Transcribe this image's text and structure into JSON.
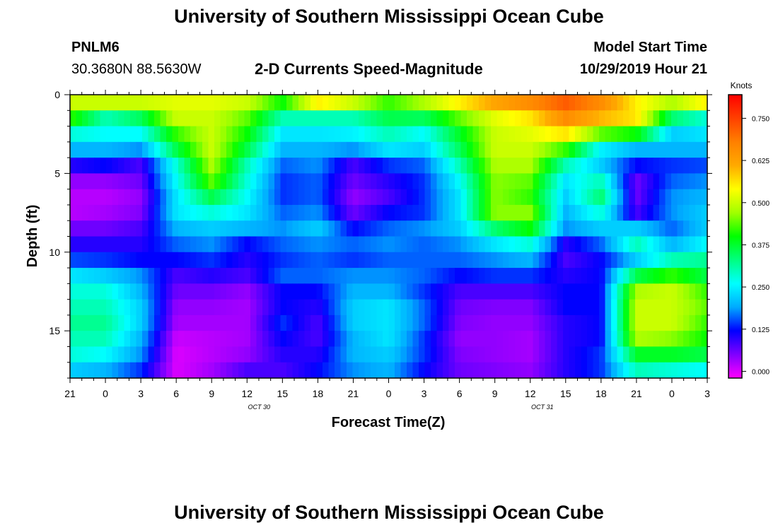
{
  "header": {
    "title_top": "University of Southern Mississippi Ocean Cube",
    "title_bottom": "University of Southern Mississippi Ocean Cube",
    "station_id": "PNLM6",
    "station_coords": "30.3680N 88.5630W",
    "plot_title": "2-D Currents Speed-Magnitude",
    "model_start_label": "Model Start Time",
    "model_start_value": "10/29/2019 Hour 21"
  },
  "chart_data": {
    "type": "heatmap",
    "title": "2-D Currents Speed-Magnitude",
    "xlabel": "Forecast Time(Z)",
    "ylabel": "Depth (ft)",
    "x_tick_labels": [
      "21",
      "0",
      "3",
      "6",
      "9",
      "12",
      "15",
      "18",
      "21",
      "0",
      "3",
      "6",
      "9",
      "12",
      "15",
      "18",
      "21",
      "0",
      "3"
    ],
    "x_day_labels": [
      {
        "after_tick": 5,
        "text": "OCT 30"
      },
      {
        "after_tick": 13,
        "text": "OCT 31"
      }
    ],
    "y_tick_labels": [
      "0",
      "5",
      "10",
      "15"
    ],
    "y_ticks": [
      0,
      5,
      10,
      15
    ],
    "ylim": [
      0,
      18
    ],
    "y_inverted": true,
    "x_hours": 54,
    "colorbar": {
      "label": "Knots",
      "ticks": [
        "0.000",
        "0.125",
        "0.250",
        "0.375",
        "0.500",
        "0.625",
        "0.750"
      ],
      "tick_values": [
        0,
        0.125,
        0.25,
        0.375,
        0.5,
        0.625,
        0.75
      ],
      "range": [
        -0.02,
        0.82
      ],
      "colors": [
        "#ff00ff",
        "#8000ff",
        "#0000ff",
        "#00aaff",
        "#00ffff",
        "#00ff80",
        "#00ff00",
        "#a0ff00",
        "#ffff00",
        "#ffaa00",
        "#ff8000",
        "#ff4000",
        "#ff0000"
      ]
    },
    "row_depths_ft": [
      0.5,
      1.5,
      2.5,
      3.5,
      4.5,
      5.5,
      6.5,
      7.5,
      8.5,
      9.5,
      10.5,
      11.5,
      12.5,
      13.5,
      14.5,
      15.5,
      16.5,
      17.5
    ],
    "col_hours": [
      0,
      3,
      6,
      9,
      12,
      15,
      18,
      21,
      24,
      27,
      30,
      33,
      36,
      39,
      42,
      45,
      48,
      51,
      54
    ],
    "values": [
      [
        0.5,
        0.5,
        0.5,
        0.52,
        0.52,
        0.5,
        0.4,
        0.55,
        0.5,
        0.42,
        0.48,
        0.55,
        0.62,
        0.66,
        0.72,
        0.66,
        0.55,
        0.48,
        0.55
      ],
      [
        0.42,
        0.3,
        0.35,
        0.5,
        0.5,
        0.44,
        0.3,
        0.3,
        0.3,
        0.36,
        0.35,
        0.44,
        0.52,
        0.56,
        0.66,
        0.6,
        0.56,
        0.34,
        0.28
      ],
      [
        0.28,
        0.26,
        0.26,
        0.42,
        0.5,
        0.4,
        0.24,
        0.24,
        0.25,
        0.3,
        0.26,
        0.38,
        0.5,
        0.52,
        0.56,
        0.44,
        0.4,
        0.22,
        0.24
      ],
      [
        0.2,
        0.2,
        0.18,
        0.36,
        0.5,
        0.36,
        0.2,
        0.2,
        0.18,
        0.24,
        0.22,
        0.35,
        0.5,
        0.5,
        0.42,
        0.25,
        0.2,
        0.2,
        0.2
      ],
      [
        0.1,
        0.12,
        0.08,
        0.28,
        0.48,
        0.3,
        0.16,
        0.18,
        0.08,
        0.14,
        0.16,
        0.3,
        0.48,
        0.48,
        0.3,
        0.22,
        0.12,
        0.14,
        0.15
      ],
      [
        0.04,
        0.04,
        0.06,
        0.26,
        0.44,
        0.28,
        0.14,
        0.16,
        0.06,
        0.1,
        0.14,
        0.26,
        0.46,
        0.44,
        0.24,
        0.3,
        0.06,
        0.16,
        0.18
      ],
      [
        0.02,
        0.02,
        0.04,
        0.24,
        0.36,
        0.26,
        0.14,
        0.16,
        0.04,
        0.08,
        0.14,
        0.24,
        0.46,
        0.42,
        0.22,
        0.34,
        0.06,
        0.18,
        0.2
      ],
      [
        0.02,
        0.03,
        0.05,
        0.24,
        0.28,
        0.24,
        0.16,
        0.18,
        0.06,
        0.12,
        0.14,
        0.24,
        0.46,
        0.46,
        0.2,
        0.28,
        0.08,
        0.18,
        0.22
      ],
      [
        0.06,
        0.06,
        0.08,
        0.2,
        0.22,
        0.2,
        0.18,
        0.22,
        0.12,
        0.16,
        0.18,
        0.22,
        0.34,
        0.4,
        0.18,
        0.22,
        0.22,
        0.16,
        0.22
      ],
      [
        0.1,
        0.1,
        0.1,
        0.16,
        0.18,
        0.12,
        0.16,
        0.18,
        0.16,
        0.18,
        0.16,
        0.18,
        0.24,
        0.28,
        0.1,
        0.16,
        0.3,
        0.2,
        0.26
      ],
      [
        0.15,
        0.14,
        0.12,
        0.12,
        0.14,
        0.1,
        0.14,
        0.16,
        0.14,
        0.16,
        0.16,
        0.16,
        0.18,
        0.2,
        0.08,
        0.12,
        0.22,
        0.3,
        0.32
      ],
      [
        0.24,
        0.22,
        0.18,
        0.08,
        0.1,
        0.08,
        0.16,
        0.16,
        0.18,
        0.18,
        0.16,
        0.12,
        0.14,
        0.14,
        0.1,
        0.12,
        0.36,
        0.42,
        0.36
      ],
      [
        0.28,
        0.28,
        0.2,
        0.06,
        0.06,
        0.04,
        0.12,
        0.12,
        0.2,
        0.2,
        0.14,
        0.08,
        0.08,
        0.08,
        0.12,
        0.12,
        0.48,
        0.5,
        0.42
      ],
      [
        0.3,
        0.3,
        0.22,
        0.04,
        0.04,
        0.03,
        0.12,
        0.1,
        0.22,
        0.24,
        0.16,
        0.06,
        0.05,
        0.05,
        0.12,
        0.12,
        0.5,
        0.5,
        0.44
      ],
      [
        0.32,
        0.32,
        0.22,
        0.03,
        0.03,
        0.03,
        0.14,
        0.08,
        0.22,
        0.24,
        0.16,
        0.05,
        0.04,
        0.04,
        0.1,
        0.12,
        0.5,
        0.5,
        0.42
      ],
      [
        0.3,
        0.3,
        0.2,
        0.01,
        0.02,
        0.03,
        0.12,
        0.08,
        0.2,
        0.24,
        0.14,
        0.04,
        0.04,
        0.03,
        0.1,
        0.12,
        0.48,
        0.46,
        0.4
      ],
      [
        0.28,
        0.26,
        0.18,
        0.0,
        0.02,
        0.04,
        0.1,
        0.1,
        0.2,
        0.22,
        0.14,
        0.05,
        0.04,
        0.03,
        0.1,
        0.14,
        0.38,
        0.38,
        0.36
      ],
      [
        0.22,
        0.2,
        0.14,
        0.0,
        0.03,
        0.08,
        0.08,
        0.12,
        0.18,
        0.2,
        0.12,
        0.06,
        0.05,
        0.04,
        0.1,
        0.14,
        0.3,
        0.28,
        0.26
      ]
    ]
  }
}
